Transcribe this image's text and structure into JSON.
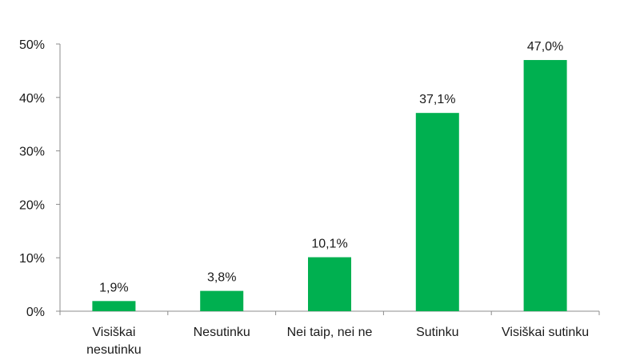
{
  "chart_data": {
    "type": "bar",
    "categories": [
      [
        "Visiškai",
        "nesutinku"
      ],
      [
        "Nesutinku"
      ],
      [
        "Nei taip, nei ne"
      ],
      [
        "Sutinku"
      ],
      [
        "Visiškai sutinku"
      ]
    ],
    "values": [
      1.9,
      3.8,
      10.1,
      37.1,
      47.0
    ],
    "data_labels": [
      "1,9%",
      "3,8%",
      "10,1%",
      "37,1%",
      "47,0%"
    ],
    "yticks": [
      0,
      10,
      20,
      30,
      40,
      50
    ],
    "ytick_labels": [
      "0%",
      "10%",
      "20%",
      "30%",
      "40%",
      "50%"
    ],
    "ylim": [
      0,
      50
    ],
    "grid": false,
    "legend": "none",
    "bar_color": "#00b050",
    "title": "",
    "xlabel": "",
    "ylabel": ""
  }
}
